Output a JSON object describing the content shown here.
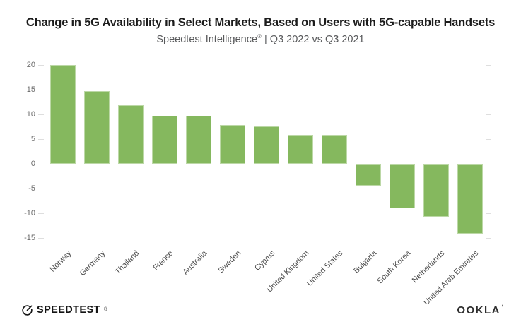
{
  "header": {
    "title": "Change in 5G Availability in Select Markets, Based on Users with 5G-capable Handsets",
    "subtitle_brand": "Speedtest Intelligence",
    "subtitle_reg": "®",
    "subtitle_rest": " | Q3 2022 vs Q3 2021"
  },
  "chart_data": {
    "type": "bar",
    "title": "Change in 5G Availability in Select Markets, Based on Users with 5G-capable Handsets",
    "subtitle": "Speedtest Intelligence® | Q3 2022 vs Q3 2021",
    "categories": [
      "Norway",
      "Germany",
      "Thailand",
      "France",
      "Australia",
      "Sweden",
      "Cyprus",
      "United Kingdom",
      "United States",
      "Bulgaria",
      "South Korea",
      "Netherlands",
      "United Arab Emirates"
    ],
    "values": [
      20.0,
      14.7,
      11.9,
      9.7,
      9.7,
      7.9,
      7.6,
      5.9,
      5.9,
      -4.3,
      -8.9,
      -10.5,
      -14.0
    ],
    "xlabel": "",
    "ylabel": "",
    "ylim": [
      -15,
      20
    ],
    "yticks": [
      20,
      15,
      10,
      5,
      0,
      -5,
      -10,
      -15
    ],
    "bar_color": "#85b85e",
    "grid": "zero-baseline-only, short tick stubs at both plot edges",
    "legend": "none",
    "x_label_rotation_deg": -45
  },
  "footer": {
    "speedtest_label": "SPEEDTEST",
    "speedtest_mark": "®",
    "ookla_label": "OOKLA",
    "ookla_mark": "’"
  }
}
